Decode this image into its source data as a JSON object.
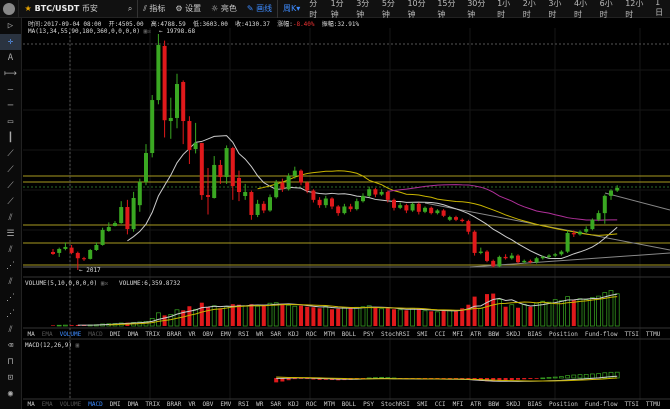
{
  "toolbar": {
    "symbol": "BTC/USDT",
    "exchange": "币安",
    "indicators": "指标",
    "settings": "设置",
    "theme": "亮色",
    "draw": "画线",
    "period_selected": "周K",
    "periods": [
      "分时",
      "1分钟",
      "3分钟",
      "5分钟",
      "10分钟",
      "15分钟",
      "30分钟",
      "1小时",
      "2小时",
      "3小时",
      "4小时",
      "6小时",
      "12小时",
      "1日"
    ]
  },
  "info": {
    "time": "时间:2017-09-04 08:00",
    "open": "开:4505.00",
    "high": "高:4788.59",
    "low": "低:3603.00",
    "close": "收:4130.37",
    "change_label": "涨幅:",
    "change": "-8.40%",
    "amplitude": "振幅:32.91%"
  },
  "main": {
    "ma_label": "MA(13,34,55,90,180,360,0,0,0,0)",
    "max_label": "← 19798.68",
    "min_label": "← 2017"
  },
  "volume": {
    "label": "VOLUME(5,10,0,0,0,0)",
    "value": "VOLUME:6,359.8732"
  },
  "macd": {
    "label": "MACD(12,26,9)"
  },
  "indicator_tabs": [
    "MA",
    "EMA",
    "VOLUME",
    "MACD",
    "DMI",
    "DMA",
    "TRIX",
    "BRAR",
    "VR",
    "OBV",
    "EMV",
    "RSI",
    "WR",
    "SAR",
    "KDJ",
    "ROC",
    "MTM",
    "BOLL",
    "PSY",
    "StochRSI",
    "SMI",
    "CCI",
    "MFI",
    "ATR",
    "BBW",
    "SKDJ",
    "BIAS",
    "Position",
    "Fund-flow",
    "TTSI",
    "TTMU"
  ],
  "colors": {
    "up": "#3aa822",
    "down": "#e0191b",
    "accent": "#3d8bff",
    "ma13": "#cccccc",
    "ma34": "#c8b400",
    "ma55": "#b0309a",
    "hline": "#a89a20"
  },
  "chart_data": {
    "type": "candlestick",
    "ohlc": [
      [
        3370,
        3600,
        3150,
        3220
      ],
      [
        3300,
        3700,
        3000,
        3600
      ],
      [
        3600,
        4100,
        3500,
        3750
      ],
      [
        3700,
        3900,
        3200,
        3300
      ],
      [
        3300,
        3400,
        2017,
        2900
      ],
      [
        2900,
        3000,
        2700,
        2850
      ],
      [
        2850,
        3600,
        2800,
        3520
      ],
      [
        3520,
        4100,
        3450,
        3900
      ],
      [
        3900,
        5200,
        3850,
        5030
      ],
      [
        4950,
        5600,
        4900,
        5250
      ],
      [
        5330,
        5700,
        5300,
        5550
      ],
      [
        5550,
        7200,
        5500,
        6760
      ],
      [
        6760,
        7300,
        4700,
        5100
      ],
      [
        5100,
        7900,
        4900,
        7440
      ],
      [
        6900,
        8900,
        6400,
        8650
      ],
      [
        8650,
        11500,
        8400,
        10830
      ],
      [
        10830,
        15200,
        10500,
        14820
      ],
      [
        14820,
        19798,
        14500,
        18970
      ],
      [
        18900,
        19300,
        12000,
        13300
      ],
      [
        13240,
        15000,
        11900,
        13470
      ],
      [
        13470,
        16800,
        12700,
        16030
      ],
      [
        16180,
        16300,
        11500,
        13240
      ],
      [
        13240,
        13600,
        10000,
        11060
      ],
      [
        11130,
        13100,
        10800,
        11580
      ],
      [
        11580,
        11600,
        7300,
        7660
      ],
      [
        7660,
        9700,
        6200,
        7520
      ],
      [
        7440,
        10600,
        7400,
        9930
      ],
      [
        9930,
        10300,
        8500,
        9020
      ],
      [
        9020,
        11400,
        8500,
        11200
      ],
      [
        11200,
        11300,
        7300,
        8340
      ],
      [
        8950,
        9500,
        7200,
        7890
      ],
      [
        7590,
        8500,
        7300,
        7890
      ],
      [
        7890,
        8000,
        5800,
        6160
      ],
      [
        6160,
        7300,
        6000,
        7000
      ],
      [
        7000,
        7200,
        6300,
        6500
      ],
      [
        6500,
        7700,
        6400,
        7500
      ],
      [
        7500,
        8800,
        7400,
        8600
      ],
      [
        8600,
        8900,
        7900,
        8100
      ],
      [
        8100,
        9300,
        8000,
        9100
      ],
      [
        9100,
        9800,
        8900,
        9500
      ],
      [
        9500,
        9600,
        8400,
        8600
      ],
      [
        8600,
        8700,
        7800,
        8000
      ],
      [
        8000,
        8100,
        7100,
        7300
      ],
      [
        7300,
        7500,
        6700,
        6900
      ],
      [
        6900,
        7600,
        6700,
        7400
      ],
      [
        7400,
        7500,
        6600,
        6800
      ],
      [
        6800,
        6900,
        6100,
        6300
      ],
      [
        6300,
        7000,
        6200,
        6800
      ],
      [
        6800,
        7000,
        6400,
        6600
      ],
      [
        6600,
        7400,
        6500,
        7200
      ],
      [
        7200,
        7800,
        7100,
        7600
      ],
      [
        7600,
        8300,
        7500,
        8100
      ],
      [
        8100,
        8200,
        7500,
        7700
      ],
      [
        7700,
        8100,
        7600,
        7900
      ],
      [
        7900,
        8000,
        7100,
        7300
      ],
      [
        7300,
        7400,
        6500,
        6700
      ],
      [
        6700,
        7100,
        6600,
        6900
      ],
      [
        6900,
        7000,
        6300,
        6500
      ],
      [
        6500,
        7100,
        6400,
        7000
      ],
      [
        7000,
        7100,
        6200,
        6400
      ],
      [
        6400,
        6800,
        6300,
        6700
      ],
      [
        6700,
        6800,
        6200,
        6300
      ],
      [
        6300,
        6600,
        6200,
        6500
      ],
      [
        6500,
        6600,
        6000,
        6100
      ],
      [
        5800,
        6100,
        5700,
        6000
      ],
      [
        6000,
        6100,
        5700,
        5800
      ],
      [
        5800,
        5900,
        5600,
        5700
      ],
      [
        5700,
        5800,
        4700,
        4900
      ],
      [
        4900,
        5000,
        3100,
        3300
      ],
      [
        3300,
        3700,
        3200,
        3400
      ],
      [
        3400,
        3500,
        2600,
        2700
      ],
      [
        2700,
        2800,
        2200,
        2300
      ],
      [
        2300,
        3100,
        2200,
        3000
      ],
      [
        3000,
        3200,
        2800,
        2900
      ],
      [
        2900,
        3300,
        2800,
        3100
      ],
      [
        3100,
        3200,
        2500,
        2600
      ],
      [
        2600,
        2800,
        2500,
        2700
      ],
      [
        2700,
        2800,
        2500,
        2600
      ],
      [
        2600,
        3000,
        2500,
        2900
      ],
      [
        2900,
        3100,
        2800,
        3000
      ],
      [
        3000,
        3200,
        2900,
        3100
      ],
      [
        3100,
        3300,
        3000,
        3200
      ],
      [
        3200,
        3500,
        3100,
        3400
      ],
      [
        3400,
        5000,
        3300,
        4800
      ],
      [
        4800,
        5000,
        4500,
        4700
      ],
      [
        4700,
        5000,
        4600,
        4900
      ],
      [
        4900,
        5300,
        4800,
        5100
      ],
      [
        5100,
        5900,
        5000,
        5800
      ],
      [
        5800,
        6500,
        5700,
        6300
      ],
      [
        6300,
        7700,
        5500,
        7600
      ],
      [
        7600,
        8100,
        7300,
        8000
      ],
      [
        8000,
        8400,
        7900,
        8200
      ]
    ],
    "volume": [
      120,
      150,
      180,
      160,
      200,
      140,
      220,
      260,
      400,
      450,
      500,
      600,
      650,
      700,
      800,
      900,
      1500,
      2600,
      2100,
      2300,
      3200,
      3100,
      3900,
      3300,
      4600,
      3700,
      4000,
      3500,
      3800,
      4300,
      4200,
      4000,
      4300,
      3900,
      4200,
      4500,
      4600,
      4400,
      4100,
      3900,
      4000,
      3800,
      3700,
      3500,
      3900,
      3300,
      3400,
      3600,
      3500,
      3700,
      3800,
      4000,
      3600,
      3400,
      3500,
      3300,
      3200,
      3100,
      3500,
      3400,
      3000,
      2900,
      2800,
      3200,
      3100,
      2900,
      3500,
      4200,
      5800,
      3500,
      6300,
      6400,
      5200,
      3800,
      4200,
      3600,
      4300,
      3800,
      4500,
      4900,
      4700,
      5200,
      5000,
      5800,
      5100,
      5400,
      5200,
      5600,
      5900,
      6600,
      7000,
      6359.8732
    ],
    "reference_lines": {
      "max_price": 19798.68,
      "min_price": 2017,
      "current_price": 8268,
      "horizontal_levels": [
        9097,
        8645,
        5404,
        4048,
        2390
      ]
    }
  }
}
